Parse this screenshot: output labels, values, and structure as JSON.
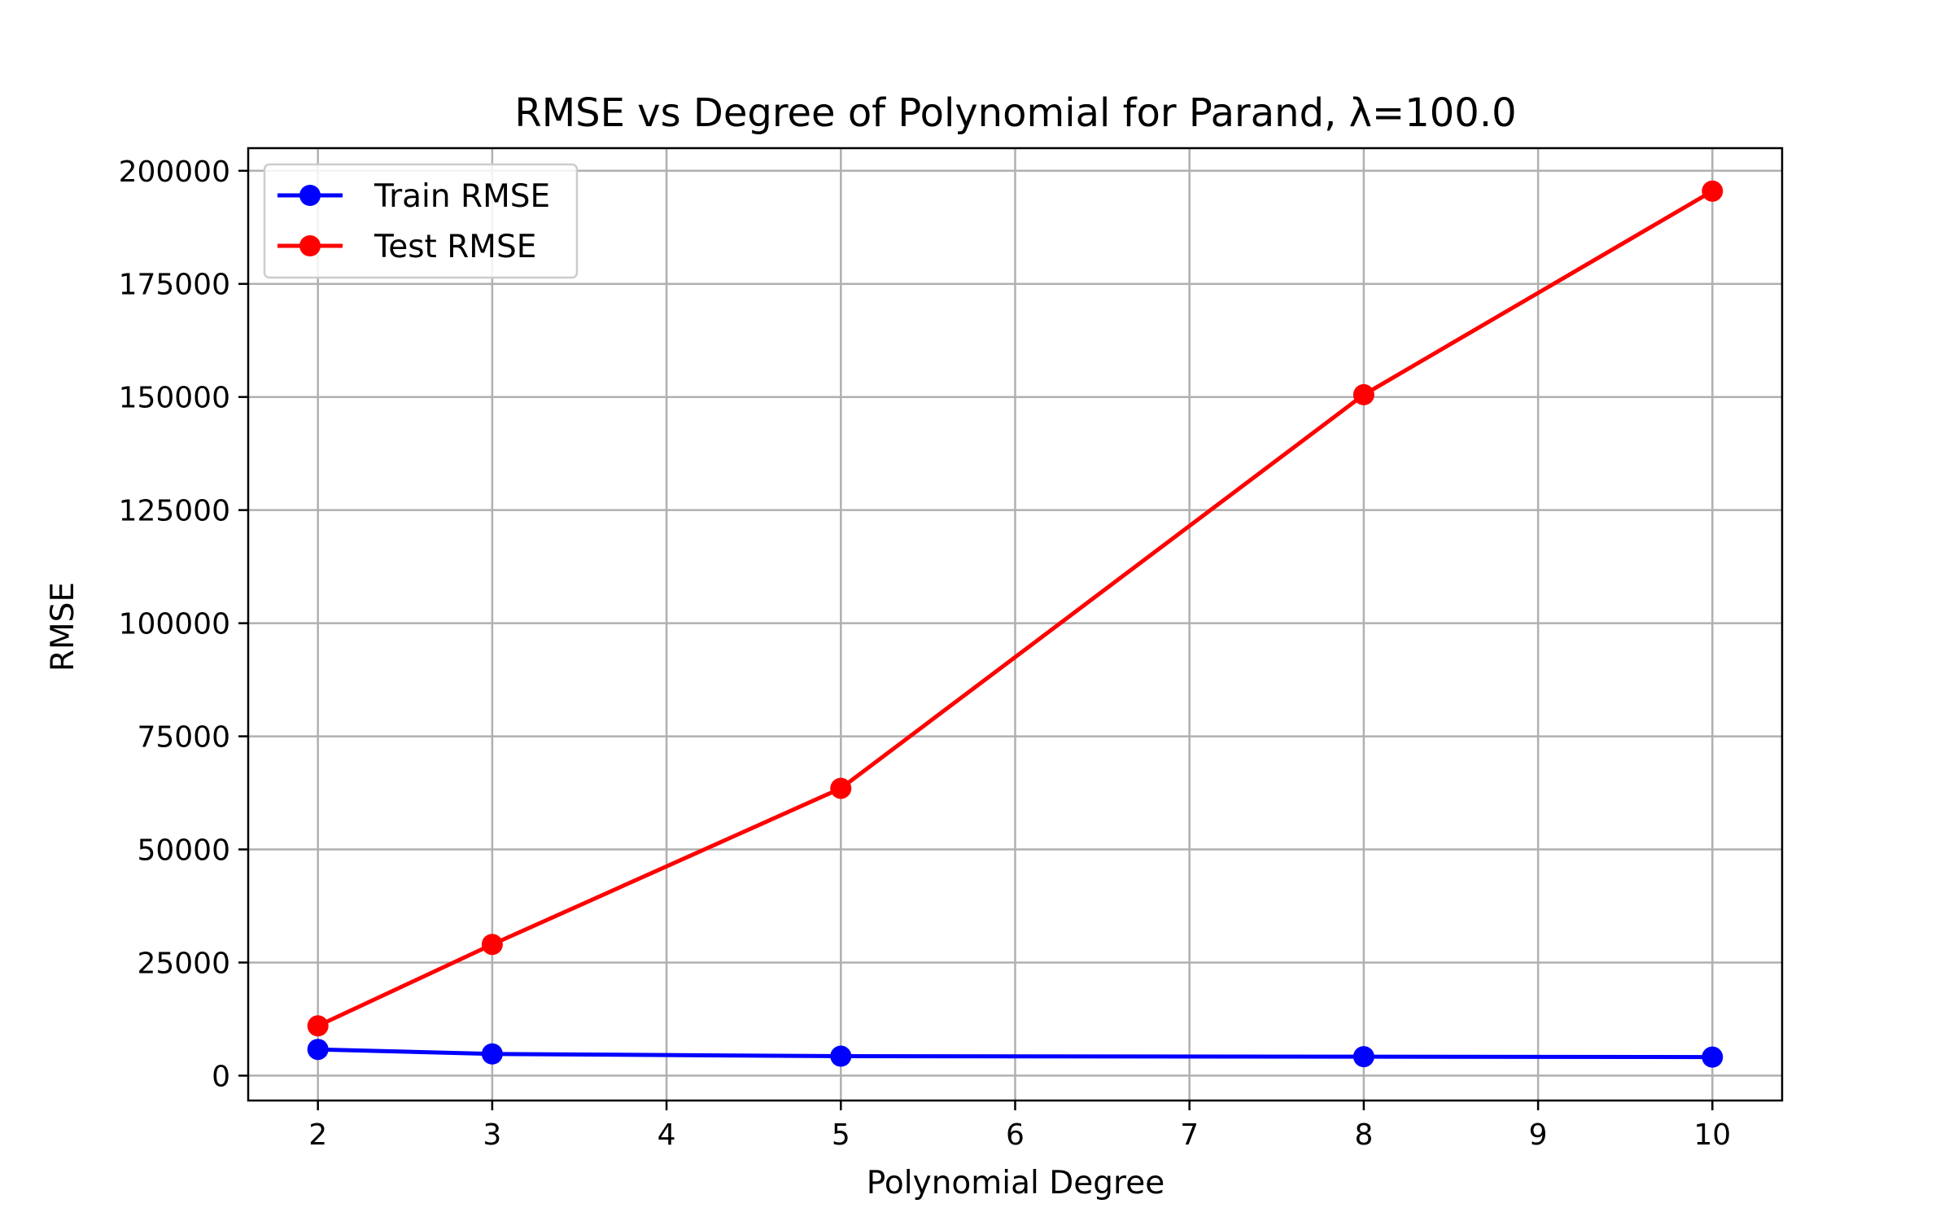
{
  "chart_data": {
    "type": "line",
    "title": "RMSE vs Degree of Polynomial for Parand, λ=100.0",
    "xlabel": "Polynomial Degree",
    "ylabel": "RMSE",
    "x": [
      2,
      3,
      5,
      8,
      10
    ],
    "xlim": [
      1.6,
      10.4
    ],
    "ylim": [
      -5500,
      205000
    ],
    "xticks": [
      2,
      3,
      4,
      5,
      6,
      7,
      8,
      9,
      10
    ],
    "yticks": [
      0,
      25000,
      50000,
      75000,
      100000,
      125000,
      150000,
      175000,
      200000
    ],
    "grid": true,
    "legend_position": "top-left",
    "series": [
      {
        "name": "Train RMSE",
        "color": "#0000ff",
        "values": [
          5800,
          4800,
          4300,
          4200,
          4100
        ]
      },
      {
        "name": "Test RMSE",
        "color": "#ff0000",
        "values": [
          11000,
          29000,
          63500,
          150500,
          195500
        ]
      }
    ]
  }
}
